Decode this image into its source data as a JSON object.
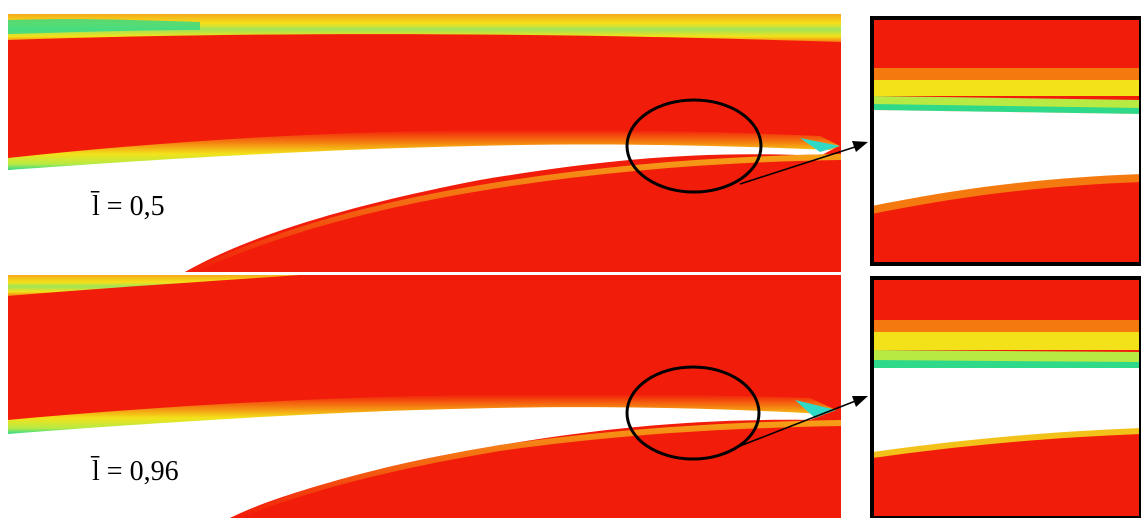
{
  "panels": [
    {
      "label": "l̄ = 0,5"
    },
    {
      "label": "l̄ = 0,96"
    }
  ],
  "colors": {
    "field": "#f21c0a",
    "gap": "#ffffff",
    "edge_yellow": "#f3e21a",
    "edge_green": "#2fd98a",
    "edge_orange": "#f47a10",
    "frame": "#000000"
  },
  "icons": {
    "zoom_circle": "circle-outline",
    "pointer": "arrow-right-up"
  }
}
